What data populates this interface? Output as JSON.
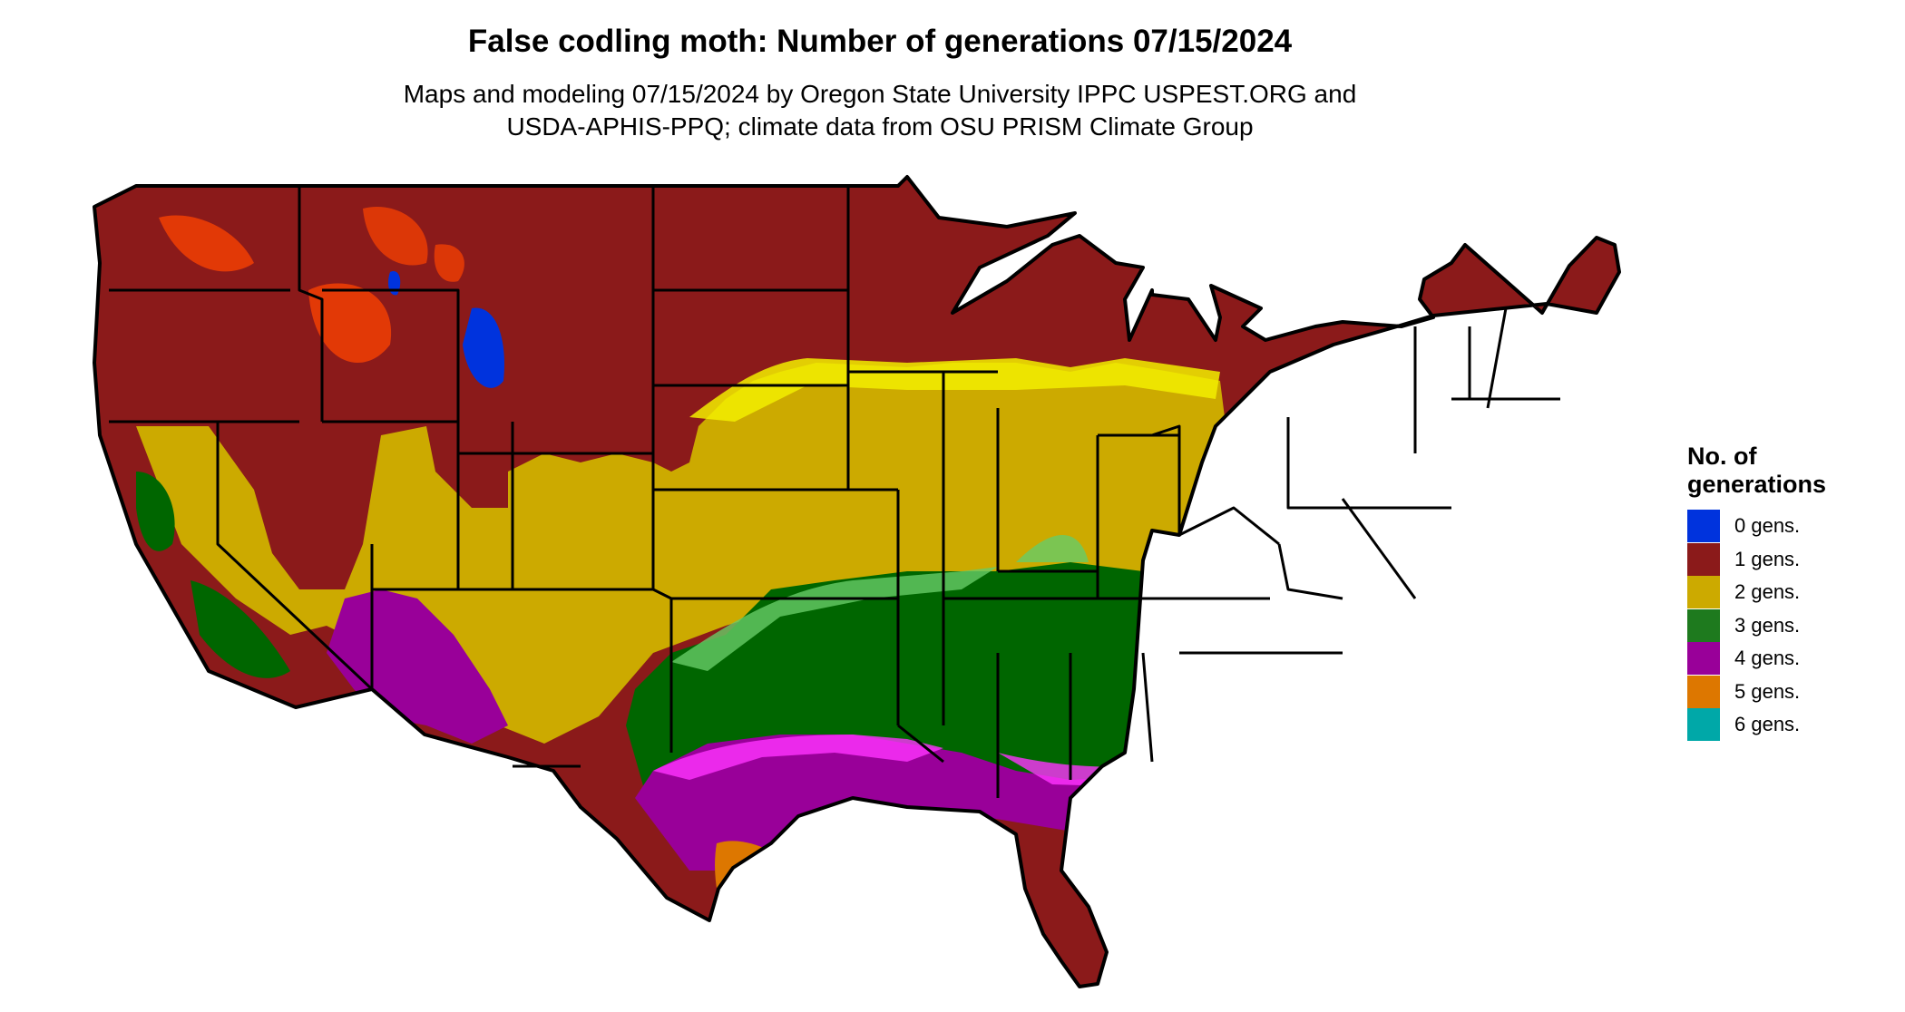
{
  "title": "False codling moth: Number of generations 07/15/2024",
  "subtitle": [
    "Maps and modeling 07/15/2024 by Oregon State University IPPC USPEST.ORG and",
    "USDA-APHIS-PPQ; climate data from OSU PRISM Climate Group"
  ],
  "legend": {
    "title_line1": "No. of",
    "title_line2": "generations",
    "items": [
      {
        "label": "0 gens.",
        "color": "#0033dd"
      },
      {
        "label": "1 gens.",
        "color": "#8b1a1a"
      },
      {
        "label": "2 gens.",
        "color": "#ccaa00"
      },
      {
        "label": "3 gens.",
        "color": "#1e7a1e"
      },
      {
        "label": "4 gens.",
        "color": "#990099"
      },
      {
        "label": "5 gens.",
        "color": "#dd7700"
      },
      {
        "label": "6 gens.",
        "color": "#00a8a8"
      }
    ]
  },
  "map": {
    "region": "Contiguous United States",
    "palette": {
      "gen0": "#0033dd",
      "gen1": "#8b1a1a",
      "gen1_light": "#ff4400",
      "gen2": "#ccaa00",
      "gen2_light": "#f2ee00",
      "gen3": "#006600",
      "gen3_light": "#66cc66",
      "gen4": "#990099",
      "gen4_light": "#ff33ff",
      "gen5": "#dd7700",
      "gen6": "#00a8a8",
      "border": "#000000"
    }
  }
}
